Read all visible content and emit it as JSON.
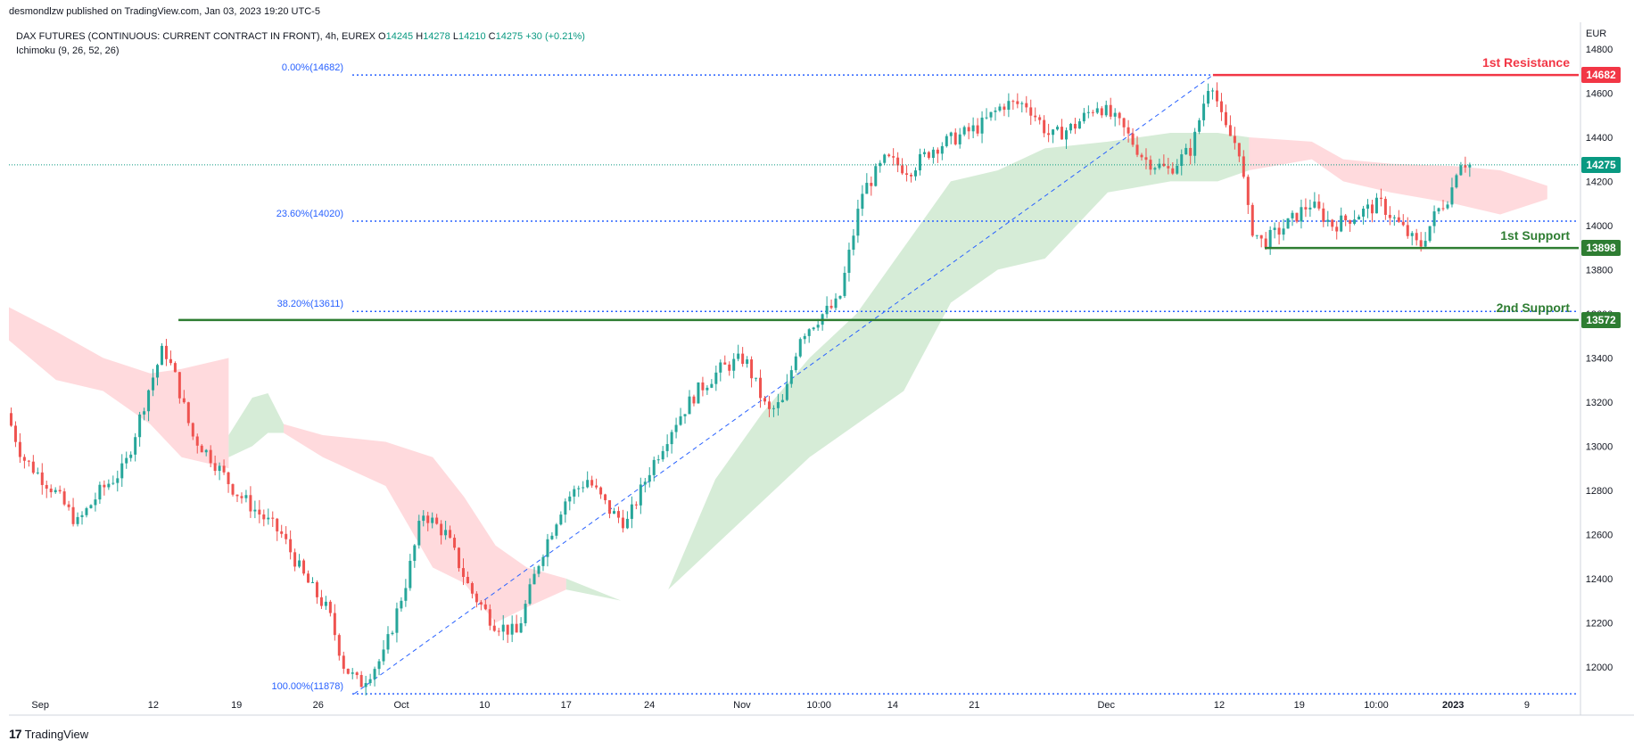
{
  "header": {
    "publisher": "desmondlzw published on TradingView.com, Jan 03, 2023 19:20 UTC-5",
    "symbol": "DAX FUTURES (CONTINUOUS: CURRENT CONTRACT IN FRONT), 4h, EUREX",
    "o_label": "O",
    "o_value": "14245",
    "h_label": "H",
    "h_value": "14278",
    "l_label": "L",
    "l_value": "14210",
    "c_label": "C",
    "c_value": "14275",
    "change": "+30 (+0.21%)",
    "indicator": "Ichimoku (9, 26, 52, 26)"
  },
  "currency": "EUR",
  "footer": {
    "brand": "TradingView",
    "logo_glyph": "17"
  },
  "colors": {
    "up": "#26a69a",
    "down": "#ef5350",
    "resistance": "#f23645",
    "support": "#2e7d32",
    "fib": "#2962ff",
    "cloud_bull": "#c8e6c9",
    "cloud_bear": "#ffcdd2"
  },
  "chart_data": {
    "type": "candlestick",
    "title": "DAX FUTURES (CONTINUOUS: CURRENT CONTRACT IN FRONT), 4h, EUREX",
    "ylim": [
      11850,
      14820
    ],
    "y_ticks": [
      12000,
      12200,
      12400,
      12600,
      12800,
      13000,
      13200,
      13400,
      13600,
      13800,
      14000,
      14200,
      14400,
      14600,
      14800
    ],
    "x_ticks": [
      {
        "label": "Sep",
        "pos": 0.02
      },
      {
        "label": "12",
        "pos": 0.092
      },
      {
        "label": "19",
        "pos": 0.145
      },
      {
        "label": "26",
        "pos": 0.197
      },
      {
        "label": "Oct",
        "pos": 0.25
      },
      {
        "label": "10",
        "pos": 0.303
      },
      {
        "label": "17",
        "pos": 0.355
      },
      {
        "label": "24",
        "pos": 0.408
      },
      {
        "label": "Nov",
        "pos": 0.467
      },
      {
        "label": "10:00",
        "pos": 0.516
      },
      {
        "label": "14",
        "pos": 0.563
      },
      {
        "label": "21",
        "pos": 0.615
      },
      {
        "label": "Dec",
        "pos": 0.699
      },
      {
        "label": "12",
        "pos": 0.771
      },
      {
        "label": "19",
        "pos": 0.822
      },
      {
        "label": "10:00",
        "pos": 0.871
      },
      {
        "label": "2023",
        "pos": 0.92
      },
      {
        "label": "9",
        "pos": 0.967
      }
    ],
    "price_path": [
      [
        0.0,
        13150
      ],
      [
        0.01,
        12950
      ],
      [
        0.03,
        12800
      ],
      [
        0.045,
        12650
      ],
      [
        0.06,
        12800
      ],
      [
        0.075,
        12900
      ],
      [
        0.09,
        13250
      ],
      [
        0.1,
        13450
      ],
      [
        0.108,
        13300
      ],
      [
        0.118,
        13050
      ],
      [
        0.13,
        12950
      ],
      [
        0.145,
        12800
      ],
      [
        0.16,
        12700
      ],
      [
        0.175,
        12600
      ],
      [
        0.19,
        12400
      ],
      [
        0.205,
        12250
      ],
      [
        0.215,
        12000
      ],
      [
        0.225,
        11920
      ],
      [
        0.24,
        12050
      ],
      [
        0.255,
        12400
      ],
      [
        0.265,
        12700
      ],
      [
        0.28,
        12600
      ],
      [
        0.295,
        12350
      ],
      [
        0.31,
        12200
      ],
      [
        0.325,
        12150
      ],
      [
        0.34,
        12500
      ],
      [
        0.355,
        12750
      ],
      [
        0.37,
        12850
      ],
      [
        0.385,
        12700
      ],
      [
        0.395,
        12650
      ],
      [
        0.41,
        12900
      ],
      [
        0.425,
        13100
      ],
      [
        0.44,
        13250
      ],
      [
        0.455,
        13350
      ],
      [
        0.47,
        13400
      ],
      [
        0.485,
        13150
      ],
      [
        0.495,
        13200
      ],
      [
        0.505,
        13500
      ],
      [
        0.52,
        13600
      ],
      [
        0.53,
        13650
      ],
      [
        0.545,
        14150
      ],
      [
        0.56,
        14300
      ],
      [
        0.575,
        14250
      ],
      [
        0.59,
        14350
      ],
      [
        0.605,
        14400
      ],
      [
        0.62,
        14450
      ],
      [
        0.635,
        14550
      ],
      [
        0.65,
        14550
      ],
      [
        0.665,
        14400
      ],
      [
        0.68,
        14450
      ],
      [
        0.695,
        14550
      ],
      [
        0.71,
        14450
      ],
      [
        0.725,
        14300
      ],
      [
        0.74,
        14250
      ],
      [
        0.755,
        14350
      ],
      [
        0.767,
        14680
      ],
      [
        0.775,
        14450
      ],
      [
        0.785,
        14350
      ],
      [
        0.792,
        14000
      ],
      [
        0.8,
        13920
      ],
      [
        0.815,
        14000
      ],
      [
        0.83,
        14100
      ],
      [
        0.845,
        14000
      ],
      [
        0.86,
        14050
      ],
      [
        0.875,
        14100
      ],
      [
        0.89,
        13980
      ],
      [
        0.9,
        13900
      ],
      [
        0.91,
        14050
      ],
      [
        0.92,
        14150
      ],
      [
        0.925,
        14300
      ],
      [
        0.932,
        14275
      ]
    ],
    "ichimoku_cloud": [
      {
        "name": "bearish cloud",
        "color": "#ffcdd2",
        "x0": 0.0,
        "x1": 0.14,
        "top": [
          [
            0.0,
            13630
          ],
          [
            0.03,
            13520
          ],
          [
            0.06,
            13400
          ],
          [
            0.09,
            13330
          ],
          [
            0.11,
            13350
          ],
          [
            0.14,
            13400
          ]
        ],
        "bottom": [
          [
            0.0,
            13480
          ],
          [
            0.03,
            13300
          ],
          [
            0.06,
            13250
          ],
          [
            0.09,
            13100
          ],
          [
            0.11,
            12950
          ],
          [
            0.14,
            12900
          ]
        ]
      },
      {
        "name": "bullish cloud",
        "color": "#c8e6c9",
        "x0": 0.14,
        "x1": 0.175,
        "top": [
          [
            0.14,
            13050
          ],
          [
            0.155,
            13220
          ],
          [
            0.165,
            13240
          ],
          [
            0.175,
            13100
          ]
        ],
        "bottom": [
          [
            0.14,
            12950
          ],
          [
            0.155,
            13000
          ],
          [
            0.165,
            13060
          ],
          [
            0.175,
            13060
          ]
        ]
      },
      {
        "name": "bearish cloud",
        "color": "#ffcdd2",
        "x0": 0.175,
        "x1": 0.355,
        "top": [
          [
            0.175,
            13100
          ],
          [
            0.2,
            13050
          ],
          [
            0.24,
            13020
          ],
          [
            0.27,
            12950
          ],
          [
            0.29,
            12770
          ],
          [
            0.31,
            12550
          ],
          [
            0.33,
            12450
          ],
          [
            0.355,
            12400
          ]
        ],
        "bottom": [
          [
            0.175,
            13060
          ],
          [
            0.2,
            12950
          ],
          [
            0.24,
            12820
          ],
          [
            0.27,
            12450
          ],
          [
            0.29,
            12380
          ],
          [
            0.31,
            12200
          ],
          [
            0.33,
            12270
          ],
          [
            0.355,
            12350
          ]
        ]
      },
      {
        "name": "bullish cloud",
        "color": "#c8e6c9",
        "x0": 0.355,
        "x1": 0.79,
        "top": [
          [
            0.355,
            12400
          ],
          [
            0.39,
            12300
          ],
          [
            0.42,
            12350
          ],
          [
            0.45,
            12850
          ],
          [
            0.48,
            13150
          ],
          [
            0.51,
            13400
          ],
          [
            0.54,
            13600
          ],
          [
            0.57,
            13900
          ],
          [
            0.6,
            14200
          ],
          [
            0.63,
            14250
          ],
          [
            0.66,
            14350
          ],
          [
            0.7,
            14380
          ],
          [
            0.74,
            14420
          ],
          [
            0.77,
            14420
          ],
          [
            0.79,
            14400
          ]
        ],
        "bottom": [
          [
            0.355,
            12350
          ],
          [
            0.39,
            12300
          ],
          [
            0.42,
            12350
          ],
          [
            0.45,
            12550
          ],
          [
            0.48,
            12750
          ],
          [
            0.51,
            12950
          ],
          [
            0.54,
            13100
          ],
          [
            0.57,
            13250
          ],
          [
            0.6,
            13650
          ],
          [
            0.63,
            13800
          ],
          [
            0.66,
            13850
          ],
          [
            0.7,
            14150
          ],
          [
            0.74,
            14200
          ],
          [
            0.77,
            14200
          ],
          [
            0.79,
            14250
          ]
        ]
      },
      {
        "name": "bearish cloud",
        "color": "#ffcdd2",
        "x0": 0.79,
        "x1": 0.98,
        "top": [
          [
            0.79,
            14400
          ],
          [
            0.83,
            14380
          ],
          [
            0.85,
            14300
          ],
          [
            0.88,
            14280
          ],
          [
            0.92,
            14270
          ],
          [
            0.95,
            14250
          ],
          [
            0.98,
            14180
          ]
        ],
        "bottom": [
          [
            0.79,
            14250
          ],
          [
            0.83,
            14300
          ],
          [
            0.85,
            14200
          ],
          [
            0.88,
            14150
          ],
          [
            0.92,
            14100
          ],
          [
            0.95,
            14050
          ],
          [
            0.98,
            14120
          ]
        ]
      }
    ],
    "fibonacci": [
      {
        "label": "0.00%(14682)",
        "value": 14682
      },
      {
        "label": "23.60%(14020)",
        "value": 14020
      },
      {
        "label": "38.20%(13611)",
        "value": 13611
      },
      {
        "label": "100.00%(11878)",
        "value": 11878
      }
    ],
    "fib_trend": {
      "from": [
        0.22,
        11878
      ],
      "to": [
        0.767,
        14682
      ]
    },
    "levels": [
      {
        "name": "resistance-1",
        "label": "1st Resistance",
        "value": 14682,
        "badge": "14682",
        "color": "#f23645",
        "from": 0.767
      },
      {
        "name": "support-1",
        "label": "1st Support",
        "value": 13898,
        "badge": "13898",
        "color": "#2e7d32",
        "from": 0.8
      },
      {
        "name": "support-2",
        "label": "2nd Support",
        "value": 13572,
        "badge": "13572",
        "color": "#2e7d32",
        "from": 0.108
      }
    ],
    "current_price": {
      "value": 14275,
      "badge": "14275",
      "color": "#089981"
    }
  }
}
